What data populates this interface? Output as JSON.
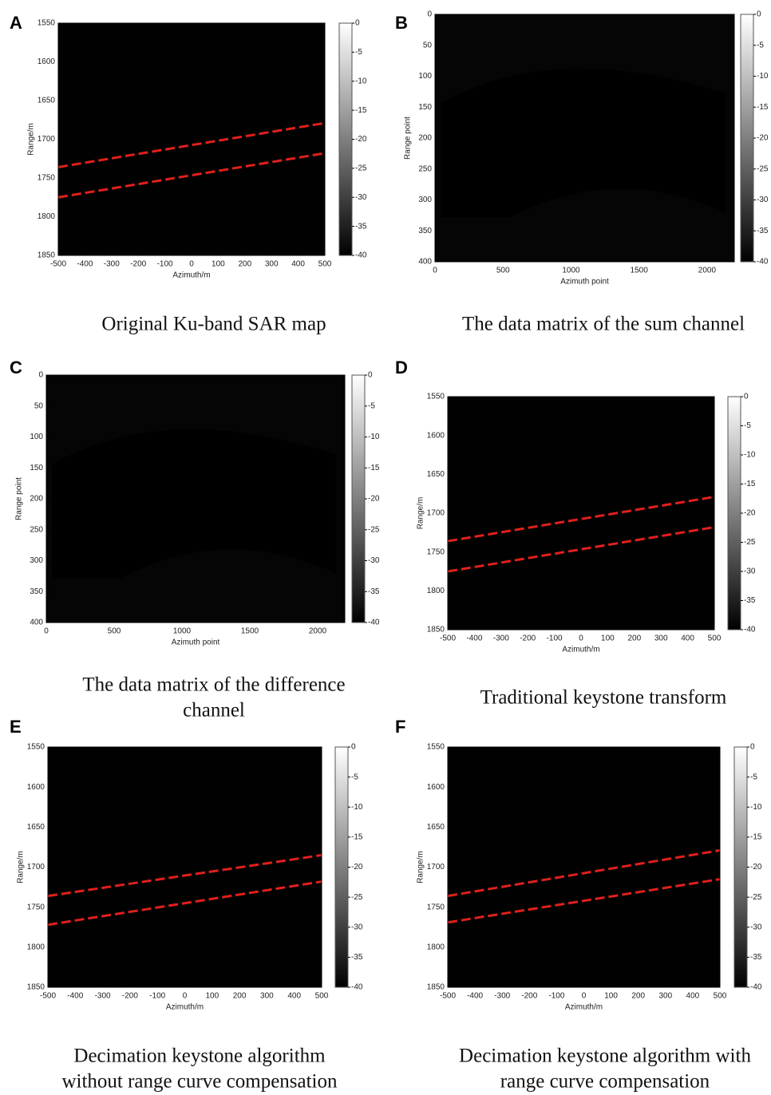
{
  "figure": {
    "panels": [
      {
        "label": "A",
        "caption": [
          "Original Ku-band SAR map"
        ],
        "xlabel": "Azimuth/m",
        "ylabel": "Range/m",
        "xlim": [
          -500,
          500
        ],
        "xticks": [
          -500,
          -400,
          -300,
          -200,
          -100,
          0,
          100,
          200,
          300,
          400,
          500
        ],
        "ylim": [
          1550,
          1850
        ],
        "yticks": [
          1550,
          1600,
          1650,
          1700,
          1750,
          1800,
          1850
        ],
        "colorbar_lim": [
          0,
          -40
        ],
        "colorbar_ticks": [
          0,
          -5,
          -10,
          -15,
          -20,
          -25,
          -30,
          -35,
          -40
        ]
      },
      {
        "label": "B",
        "caption": [
          "The data matrix of the sum channel"
        ],
        "xlabel": "Azimuth point",
        "ylabel": "Range point",
        "xlim": [
          0,
          2200
        ],
        "xticks": [
          0,
          500,
          1000,
          1500,
          2000
        ],
        "ylim": [
          0,
          400
        ],
        "yticks": [
          0,
          50,
          100,
          150,
          200,
          250,
          300,
          350,
          400
        ],
        "colorbar_lim": [
          0,
          -40
        ],
        "colorbar_ticks": [
          0,
          -5,
          -10,
          -15,
          -20,
          -25,
          -30,
          -35,
          -40
        ]
      },
      {
        "label": "C",
        "caption": [
          "The data matrix of the difference",
          "channel"
        ],
        "xlabel": "Azimuth point",
        "ylabel": "Range point",
        "xlim": [
          0,
          2200
        ],
        "xticks": [
          0,
          500,
          1000,
          1500,
          2000
        ],
        "ylim": [
          0,
          400
        ],
        "yticks": [
          0,
          50,
          100,
          150,
          200,
          250,
          300,
          350,
          400
        ],
        "colorbar_lim": [
          0,
          -40
        ],
        "colorbar_ticks": [
          0,
          -5,
          -10,
          -15,
          -20,
          -25,
          -30,
          -35,
          -40
        ]
      },
      {
        "label": "D",
        "caption": [
          "Traditional keystone transform"
        ],
        "xlabel": "Azimuth/m",
        "ylabel": "Range/m",
        "xlim": [
          -500,
          500
        ],
        "xticks": [
          -500,
          -400,
          -300,
          -200,
          -100,
          0,
          100,
          200,
          300,
          400,
          500
        ],
        "ylim": [
          1550,
          1850
        ],
        "yticks": [
          1550,
          1600,
          1650,
          1700,
          1750,
          1800,
          1850
        ],
        "colorbar_lim": [
          0,
          -40
        ],
        "colorbar_ticks": [
          0,
          -5,
          -10,
          -15,
          -20,
          -25,
          -30,
          -35,
          -40
        ]
      },
      {
        "label": "E",
        "caption": [
          "Decimation keystone algorithm",
          "without range curve compensation"
        ],
        "xlabel": "Azimuth/m",
        "ylabel": "Range/m",
        "xlim": [
          -500,
          500
        ],
        "xticks": [
          -500,
          -400,
          -300,
          -200,
          -100,
          0,
          100,
          200,
          300,
          400,
          500
        ],
        "ylim": [
          1550,
          1850
        ],
        "yticks": [
          1550,
          1600,
          1650,
          1700,
          1750,
          1800,
          1850
        ],
        "colorbar_lim": [
          0,
          -40
        ],
        "colorbar_ticks": [
          0,
          -5,
          -10,
          -15,
          -20,
          -25,
          -30,
          -35,
          -40
        ]
      },
      {
        "label": "F",
        "caption": [
          "Decimation keystone algorithm with",
          "range curve compensation"
        ],
        "xlabel": "Azimuth/m",
        "ylabel": "Range/m",
        "xlim": [
          -500,
          500
        ],
        "xticks": [
          -500,
          -400,
          -300,
          -200,
          -100,
          0,
          100,
          200,
          300,
          400,
          500
        ],
        "ylim": [
          1550,
          1850
        ],
        "yticks": [
          1550,
          1600,
          1650,
          1700,
          1750,
          1800,
          1850
        ],
        "colorbar_lim": [
          0,
          -40
        ],
        "colorbar_ticks": [
          0,
          -5,
          -10,
          -15,
          -20,
          -25,
          -30,
          -35,
          -40
        ]
      }
    ]
  }
}
